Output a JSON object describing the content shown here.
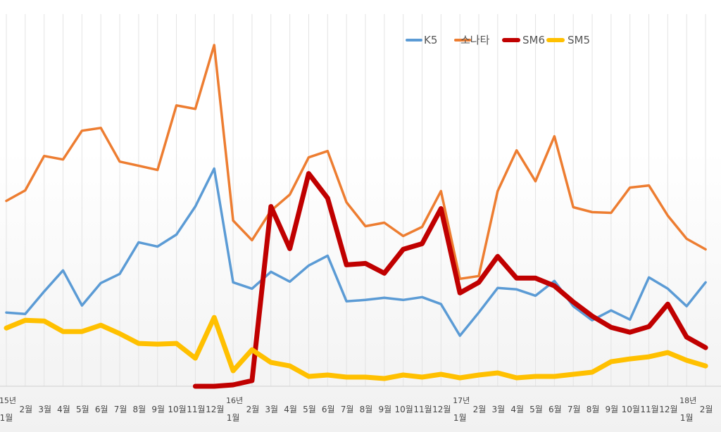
{
  "chart_data": {
    "type": "line",
    "title": "",
    "xlabel": "",
    "ylabel": "",
    "ylim": [
      0,
      540
    ],
    "grid": "vertical",
    "legend": "top-right",
    "categories": [
      "1월",
      "2월",
      "3월",
      "4월",
      "5월",
      "6월",
      "7월",
      "8월",
      "9월",
      "10월",
      "11월",
      "12월",
      "1월",
      "2월",
      "3월",
      "4월",
      "5월",
      "6월",
      "7월",
      "8월",
      "9월",
      "10월",
      "11월",
      "12월",
      "1월",
      "2월",
      "3월",
      "4월",
      "5월",
      "6월",
      "7월",
      "8월",
      "9월",
      "10월",
      "11월",
      "12월",
      "1월",
      "2월"
    ],
    "year_labels": [
      {
        "index": 0,
        "label": "15년"
      },
      {
        "index": 12,
        "label": "16년"
      },
      {
        "index": 24,
        "label": "17년"
      },
      {
        "index": 36,
        "label": "18년"
      }
    ],
    "series": [
      {
        "name": "K5",
        "color": "#5b9bd5",
        "width": 3.5,
        "values": [
          105,
          103,
          135,
          165,
          115,
          147,
          160,
          205,
          199,
          216,
          256,
          310,
          148,
          139,
          163,
          149,
          172,
          186,
          121,
          123,
          126,
          123,
          127,
          117,
          72,
          105,
          140,
          138,
          129,
          150,
          114,
          94,
          108,
          95,
          155,
          139,
          114,
          148
        ]
      },
      {
        "name": "소나타",
        "color": "#ed7d31",
        "width": 3.5,
        "values": [
          264,
          279,
          328,
          323,
          364,
          368,
          320,
          314,
          308,
          400,
          395,
          486,
          236,
          208,
          250,
          273,
          326,
          335,
          262,
          228,
          233,
          214,
          227,
          278,
          153,
          157,
          278,
          336,
          292,
          356,
          255,
          248,
          247,
          283,
          286,
          243,
          210,
          195
        ]
      },
      {
        "name": "SM6",
        "color": "#c00000",
        "width": 7,
        "values": [
          null,
          null,
          null,
          null,
          null,
          null,
          null,
          null,
          null,
          null,
          0,
          0,
          2,
          8,
          256,
          196,
          303,
          268,
          173,
          175,
          161,
          195,
          203,
          253,
          133,
          148,
          185,
          154,
          154,
          143,
          120,
          100,
          84,
          77,
          85,
          117,
          70,
          55
        ]
      },
      {
        "name": "SM5",
        "color": "#ffc000",
        "width": 7,
        "values": [
          83,
          94,
          93,
          78,
          78,
          87,
          75,
          61,
          60,
          61,
          40,
          98,
          22,
          52,
          34,
          29,
          14,
          16,
          13,
          13,
          11,
          16,
          13,
          17,
          12,
          16,
          19,
          12,
          14,
          14,
          17,
          20,
          35,
          39,
          42,
          48,
          37,
          29
        ]
      }
    ]
  }
}
